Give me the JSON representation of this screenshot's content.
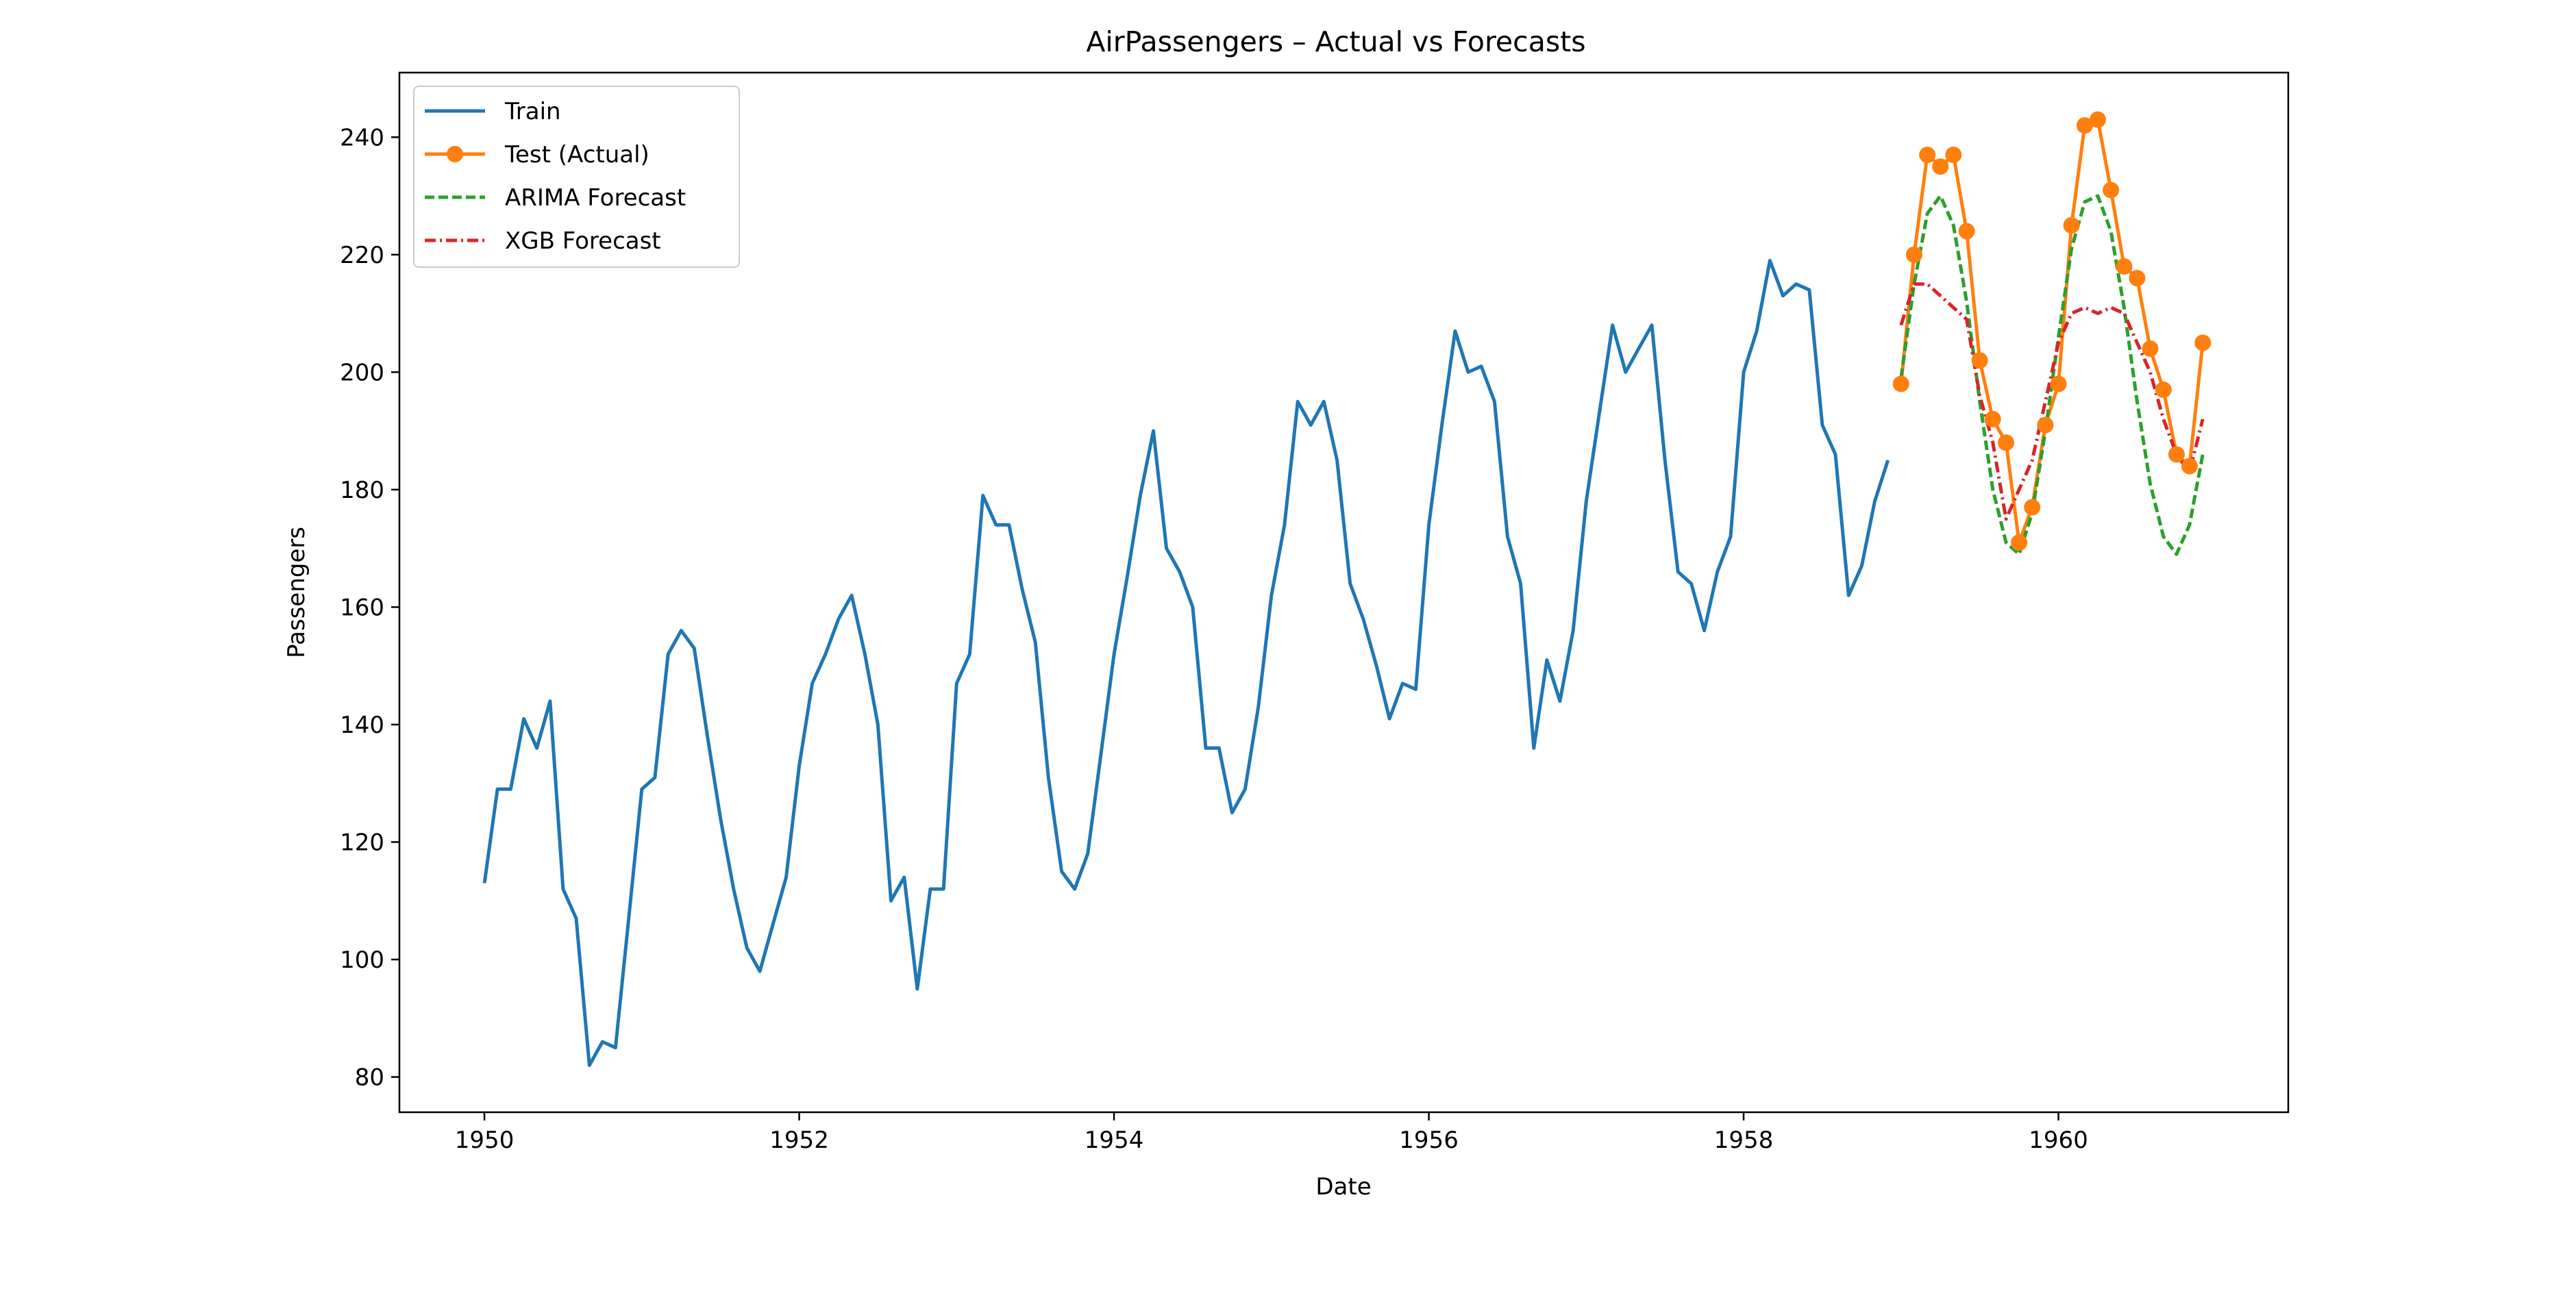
{
  "chart_data": {
    "type": "line",
    "title": "AirPassengers – Actual vs Forecasts",
    "xlabel": "Date",
    "ylabel": "Passengers",
    "xlim": [
      1949.46,
      1961.46
    ],
    "ylim": [
      74,
      251
    ],
    "xticks": [
      1950,
      1952,
      1954,
      1956,
      1958,
      1960
    ],
    "xtick_labels": [
      "1950",
      "1952",
      "1954",
      "1956",
      "1958",
      "1960"
    ],
    "yticks": [
      80,
      100,
      120,
      140,
      160,
      180,
      200,
      220,
      240
    ],
    "ytick_labels": [
      "80",
      "100",
      "120",
      "140",
      "160",
      "180",
      "200",
      "220",
      "240"
    ],
    "grid": false,
    "legend_position": "top-left",
    "series": [
      {
        "name": "Train",
        "color": "#1f77b4",
        "style": "solid",
        "marker": "none",
        "x": [
          1950.0,
          1950.083,
          1950.167,
          1950.25,
          1950.333,
          1950.417,
          1950.5,
          1950.583,
          1950.667,
          1950.75,
          1950.833,
          1950.917,
          1951.0,
          1951.083,
          1951.167,
          1951.25,
          1951.333,
          1951.417,
          1951.5,
          1951.583,
          1951.667,
          1951.75,
          1951.833,
          1951.917,
          1952.0,
          1952.083,
          1952.167,
          1952.25,
          1952.333,
          1952.417,
          1952.5,
          1952.583,
          1952.667,
          1952.75,
          1952.833,
          1952.917,
          1953.0,
          1953.083,
          1953.167,
          1953.25,
          1953.333,
          1953.417,
          1953.5,
          1953.583,
          1953.667,
          1953.75,
          1953.833,
          1953.917,
          1954.0,
          1954.083,
          1954.167,
          1954.25,
          1954.333,
          1954.417,
          1954.5,
          1954.583,
          1954.667,
          1954.75,
          1954.833,
          1954.917,
          1955.0,
          1955.083,
          1955.167,
          1955.25,
          1955.333,
          1955.417,
          1955.5,
          1955.583,
          1955.667,
          1955.75,
          1955.833,
          1955.917,
          1956.0,
          1956.083,
          1956.167,
          1956.25,
          1956.333,
          1956.417,
          1956.5,
          1956.583,
          1956.667,
          1956.75,
          1956.833,
          1956.917,
          1957.0,
          1957.083,
          1957.167,
          1957.25,
          1957.333,
          1957.417,
          1957.5,
          1957.583,
          1957.667,
          1957.75,
          1957.833,
          1957.917,
          1958.0,
          1958.083,
          1958.167,
          1958.25,
          1958.333,
          1958.417,
          1958.5,
          1958.583,
          1958.667,
          1958.75,
          1958.833,
          1958.917
        ],
        "values": [
          113,
          129,
          129,
          141,
          136,
          144,
          112,
          107,
          82,
          86,
          85,
          107,
          129,
          131,
          152,
          156,
          153,
          138,
          124,
          112,
          102,
          98,
          106,
          114,
          133,
          147,
          152,
          158,
          162,
          152,
          140,
          110,
          114,
          95,
          112,
          112,
          147,
          152,
          179,
          174,
          174,
          163,
          154,
          131,
          115,
          112,
          118,
          135,
          152,
          165,
          179,
          190,
          170,
          166,
          160,
          136,
          136,
          125,
          129,
          143,
          162,
          174,
          195,
          191,
          195,
          185,
          164,
          158,
          150,
          141,
          147,
          146,
          174,
          191,
          207,
          200,
          201,
          195,
          172,
          164,
          136,
          151,
          144,
          156,
          178,
          193,
          208,
          200,
          204,
          208,
          185,
          166,
          164,
          156,
          166,
          172,
          200,
          207,
          219,
          213,
          215,
          214,
          191,
          186,
          162,
          167,
          178,
          185
        ]
      },
      {
        "name": "Test (Actual)",
        "color": "#ff7f0e",
        "style": "solid",
        "marker": "circle",
        "x": [
          1959.0,
          1959.083,
          1959.167,
          1959.25,
          1959.333,
          1959.417,
          1959.5,
          1959.583,
          1959.667,
          1959.75,
          1959.833,
          1959.917,
          1960.0,
          1960.083,
          1960.167,
          1960.25,
          1960.333,
          1960.417,
          1960.5,
          1960.583,
          1960.667,
          1960.75,
          1960.833,
          1960.917
        ],
        "values": [
          198,
          220,
          237,
          235,
          237,
          224,
          202,
          192,
          188,
          171,
          177,
          191,
          198,
          225,
          242,
          243,
          231,
          218,
          216,
          204,
          197,
          186,
          184,
          205
        ]
      },
      {
        "name": "ARIMA Forecast",
        "color": "#2ca02c",
        "style": "dashed",
        "marker": "none",
        "x": [
          1959.0,
          1959.083,
          1959.167,
          1959.25,
          1959.333,
          1959.417,
          1959.5,
          1959.583,
          1959.667,
          1959.75,
          1959.833,
          1959.917,
          1960.0,
          1960.083,
          1960.167,
          1960.25,
          1960.333,
          1960.417,
          1960.5,
          1960.583,
          1960.667,
          1960.75,
          1960.833,
          1960.917
        ],
        "values": [
          199,
          215,
          227,
          230,
          225,
          212,
          195,
          180,
          171,
          169,
          176,
          190,
          206,
          221,
          229,
          230,
          224,
          211,
          195,
          181,
          172,
          169,
          174,
          186
        ]
      },
      {
        "name": "XGB Forecast",
        "color": "#d62728",
        "style": "dashdot",
        "marker": "none",
        "x": [
          1959.0,
          1959.083,
          1959.167,
          1959.25,
          1959.333,
          1959.417,
          1959.5,
          1959.583,
          1959.667,
          1959.75,
          1959.833,
          1959.917,
          1960.0,
          1960.083,
          1960.167,
          1960.25,
          1960.333,
          1960.417,
          1960.5,
          1960.583,
          1960.667,
          1960.75,
          1960.833,
          1960.917
        ],
        "values": [
          208,
          215,
          215,
          213,
          211,
          209,
          196,
          188,
          175,
          180,
          185,
          195,
          205,
          210,
          211,
          210,
          211,
          210,
          205,
          200,
          192,
          186,
          183,
          192
        ]
      }
    ]
  }
}
